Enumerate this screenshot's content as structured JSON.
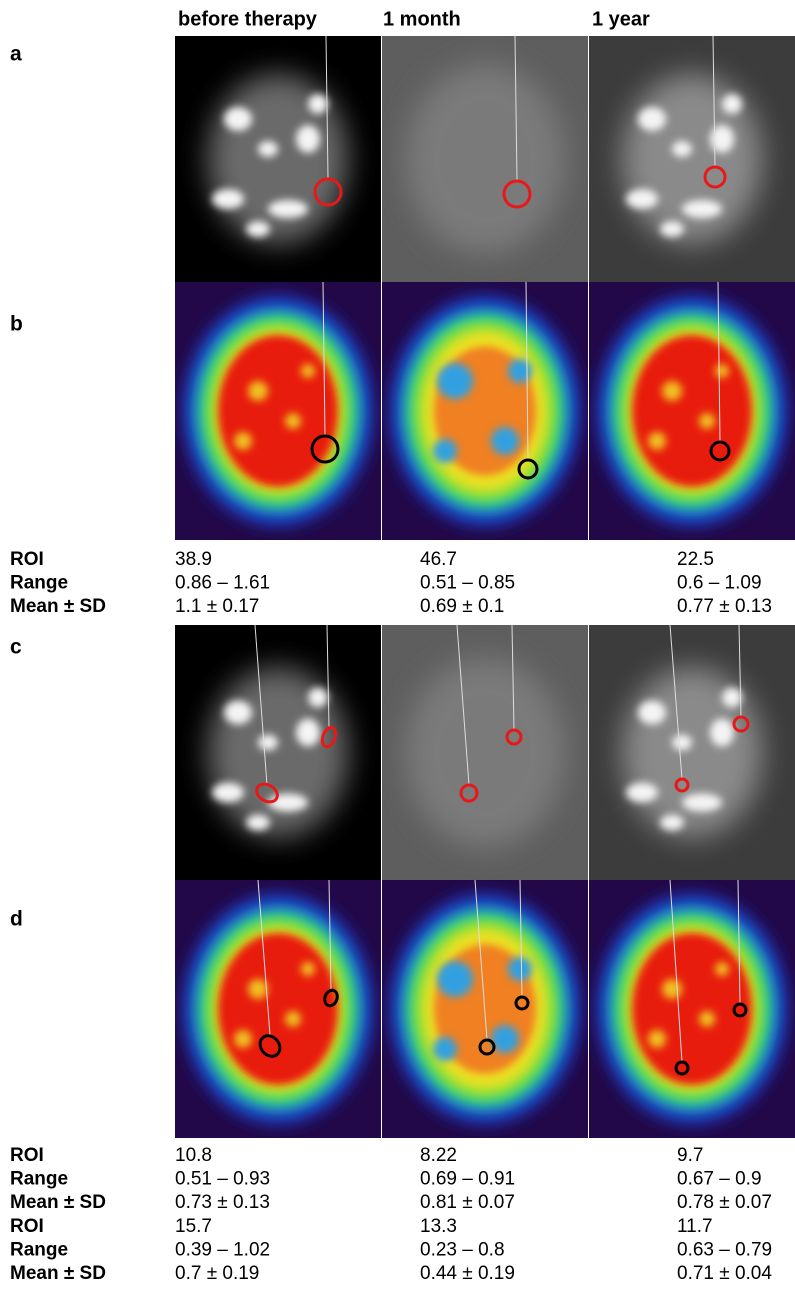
{
  "headers": [
    "before therapy",
    "1 month",
    "1 year"
  ],
  "panel_labels": [
    "a",
    "b",
    "c",
    "d"
  ],
  "table1": {
    "rows": [
      {
        "label": "ROI",
        "cells": [
          "38.9",
          "46.7",
          "22.5"
        ]
      },
      {
        "label": "Range",
        "cells": [
          "0.86 – 1.61",
          "0.51 – 0.85",
          "0.6 – 1.09"
        ]
      },
      {
        "label": "Mean ± SD",
        "cells": [
          "1.1 ± 0.17",
          "0.69 ± 0.1",
          "0.77 ± 0.13"
        ]
      }
    ]
  },
  "table2": {
    "rows": [
      {
        "label": "ROI",
        "cells": [
          "10.8",
          "8.22",
          "9.7"
        ]
      },
      {
        "label": "Range",
        "cells": [
          "0.51 – 0.93",
          "0.69 – 0.91",
          "0.67 – 0.9"
        ]
      },
      {
        "label": "Mean ± SD",
        "cells": [
          "0.73 ± 0.13",
          "0.81 ± 0.07",
          "0.78 ± 0.07"
        ]
      },
      {
        "label": "ROI",
        "cells": [
          "15.7",
          "13.3",
          "11.7"
        ]
      },
      {
        "label": "Range",
        "cells": [
          "0.39 – 1.02",
          "0.23 – 0.8",
          "0.63 – 0.79"
        ]
      },
      {
        "label": "Mean ± SD",
        "cells": [
          "0.7 ± 0.19",
          "0.44 ± 0.19",
          "0.71 ± 0.04"
        ]
      }
    ]
  }
}
